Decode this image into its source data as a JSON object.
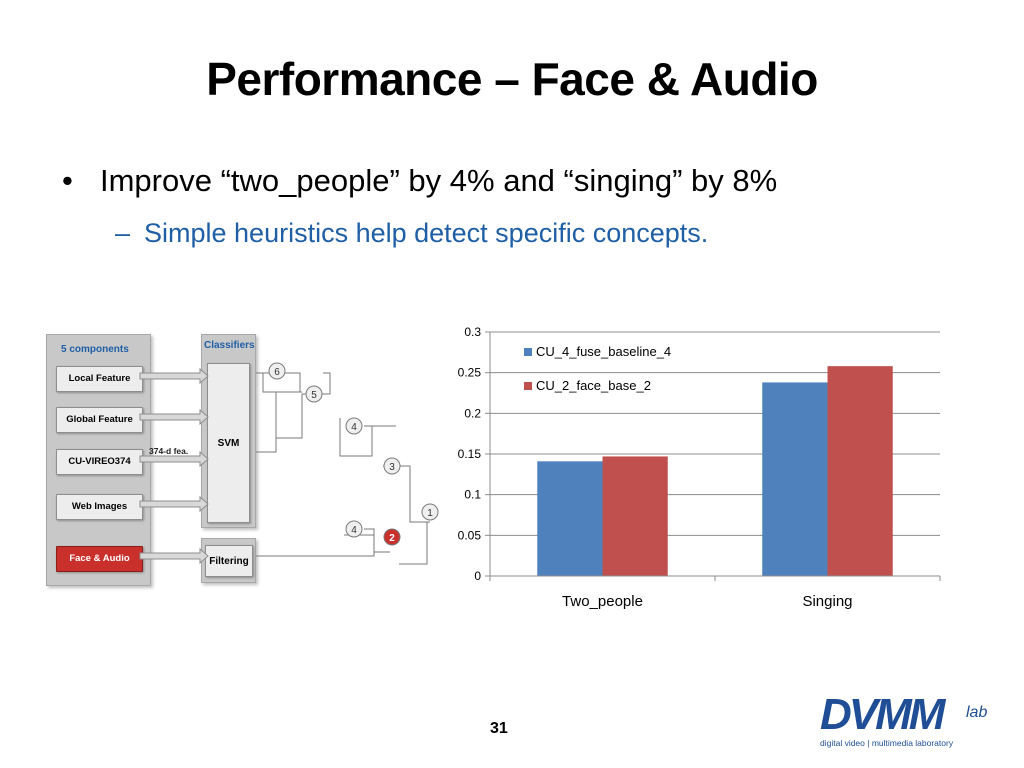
{
  "slide": {
    "title": "Performance – Face & Audio",
    "bullet_symbol": "•",
    "bullet": "Improve “two_people” by 4% and “singing” by 8%",
    "sub_symbol": "–",
    "sub_bullet": "Simple heuristics help detect specific concepts.",
    "page_number": "31"
  },
  "diagram": {
    "components_header": "5 components",
    "components": [
      {
        "label": "Local Feature",
        "highlight": false
      },
      {
        "label": "Global Feature",
        "highlight": false
      },
      {
        "label": "CU-VIREO374",
        "highlight": false
      },
      {
        "label": "Web Images",
        "highlight": false
      },
      {
        "label": "Face & Audio",
        "highlight": true
      }
    ],
    "feature_note": "374-d fea.",
    "classifiers_header": "Classifiers",
    "svm_label": "SVM",
    "filtering_label": "Filtering",
    "rank_nodes": [
      "6",
      "5",
      "4",
      "3",
      "1",
      "4",
      "2"
    ],
    "highlight_color": "#c9302c"
  },
  "logo": {
    "main": "DVMM",
    "suffix": "lab",
    "tagline": "digital video | multimedia laboratory"
  },
  "colors": {
    "sub_bullet": "#1f5fa6",
    "series_1": "#4f81bd",
    "series_2": "#c0504d"
  },
  "chart_data": {
    "type": "bar",
    "categories": [
      "Two_people",
      "Singing"
    ],
    "series": [
      {
        "name": "CU_4_fuse_baseline_4",
        "values": [
          0.141,
          0.238
        ],
        "color": "#4f81bd"
      },
      {
        "name": "CU_2_face_base_2",
        "values": [
          0.147,
          0.258
        ],
        "color": "#c0504d"
      }
    ],
    "ylim": [
      0,
      0.3
    ],
    "yticks": [
      "0",
      "0.05",
      "0.1",
      "0.15",
      "0.2",
      "0.25",
      "0.3"
    ],
    "grid": true,
    "legend_position": "top-left"
  }
}
